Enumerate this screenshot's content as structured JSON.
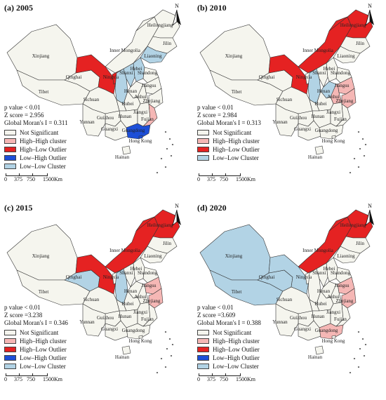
{
  "colors": {
    "not_significant": "#f5f5ee",
    "high_high": "#f5b7b5",
    "high_low": "#e52222",
    "low_high": "#1d4fd8",
    "low_low": "#b2d3e5"
  },
  "legend_labels": {
    "ns": "Not Significant",
    "hh": "High–High cluster",
    "hl": "High–Low Outlier",
    "lh": "Low–High Outlier",
    "ll_first": "Low–Low Cluster",
    "ll_2015": "Low–Low Cluster",
    "ll_2020": "Low–Low Cluster"
  },
  "north_label": "N",
  "scale": {
    "l0": "0",
    "l1": "375",
    "l2": "750",
    "l3": "1500Km"
  },
  "panels": [
    {
      "title": "(a) 2005",
      "p_value": "p value < 0.01",
      "z_score": "Z score = 2.956",
      "morans": "Global Moran's I = 0.311",
      "legend_keys": [
        "ns",
        "hh",
        "hl",
        "lh",
        "ll"
      ],
      "legend": [
        "Not Significant",
        "High–High cluster",
        "High–Low Outlier",
        "Low–High Outlier",
        "Low–Low Cluster"
      ]
    },
    {
      "title": "(b) 2010",
      "p_value": "p value < 0.01",
      "z_score": "Z score = 2.984",
      "morans": "Global Moran's I = 0.313",
      "legend_keys": [
        "ns",
        "hh",
        "hl",
        "ll"
      ],
      "legend": [
        "Not Significant",
        "High–High cluster",
        "High–Low Outlier",
        "Low–Low Cluster"
      ]
    },
    {
      "title": "(c) 2015",
      "p_value": "p value < 0.01",
      "z_score": "Z score =3.238",
      "morans": "Global Moran's I = 0.346",
      "legend_keys": [
        "ns",
        "hh",
        "hl",
        "lh",
        "ll"
      ],
      "legend": [
        "Not Significant",
        "High–High cluster",
        "High–Low Outlier",
        "Low–High Outlier",
        "Low–Low Cluster"
      ]
    },
    {
      "title": "(d) 2020",
      "p_value": "p value < 0.01",
      "z_score": "Z score =3.609",
      "morans": "Global Moran's I = 0.388",
      "legend_keys": [
        "ns",
        "hh",
        "hl",
        "lh",
        "ll"
      ],
      "legend": [
        "Not Significant",
        "High–High cluster",
        "High–Low Outlier",
        "Low–High Outlier",
        "Low–Low Cluster"
      ]
    }
  ],
  "province_names": {
    "xinjiang": "Xinjiang",
    "tibet": "Tibet",
    "qinghai": "Qinghai",
    "neimenggu": "Inner Mongolia",
    "heilongjiang": "Heilongjiang",
    "jilin": "Jilin",
    "liaoning": "Liaoning",
    "ningxia": "Ningxia",
    "shanxi": "Shanxi",
    "hebei": "Hebei",
    "shandong": "Shandong",
    "henan": "Henan",
    "sichuan": "Sichuan",
    "hubei": "Hubei",
    "anhui": "Anhui",
    "jiangsu": "Jiangsu",
    "zhejiang": "Zhejiang",
    "jiangxi": "Jiangxi",
    "hunan": "Hunan",
    "guizhou": "Guizhou",
    "yunnan": "Yunnan",
    "guangxi": "Guangxi",
    "guangdong": "Guangdong",
    "fujian": "Fujian",
    "hainan": "Hainan",
    "hongkong": "Hong Kong"
  },
  "classes": [
    {
      "gansu": "hl",
      "ningxia": "hl",
      "shaanxi": "ll",
      "shanxi": "ll",
      "hebei": "ll",
      "liaoning": "ll",
      "fujian": "hh",
      "guangdong": "lh",
      "hongkong": "lh"
    },
    {
      "neimenggu": "hl",
      "gansu": "hl",
      "heilongjiang": "hl",
      "henan": "ll",
      "shaanxi": "ll",
      "anhui": "hh",
      "jiangsu": "hh",
      "zhejiang": "hh"
    },
    {
      "neimenggu": "hl",
      "heilongjiang": "hl",
      "gansu": "hl",
      "qinghai": "ll",
      "shaanxi": "ll",
      "jiangsu": "hh",
      "zhejiang": "hh"
    },
    {
      "neimenggu": "hl",
      "heilongjiang": "hl",
      "xinjiang": "ll",
      "tibet": "ll",
      "qinghai": "ll",
      "gansu": "ll",
      "jiangsu": "hh",
      "zhejiang": "hh",
      "guangdong": "hh"
    }
  ]
}
